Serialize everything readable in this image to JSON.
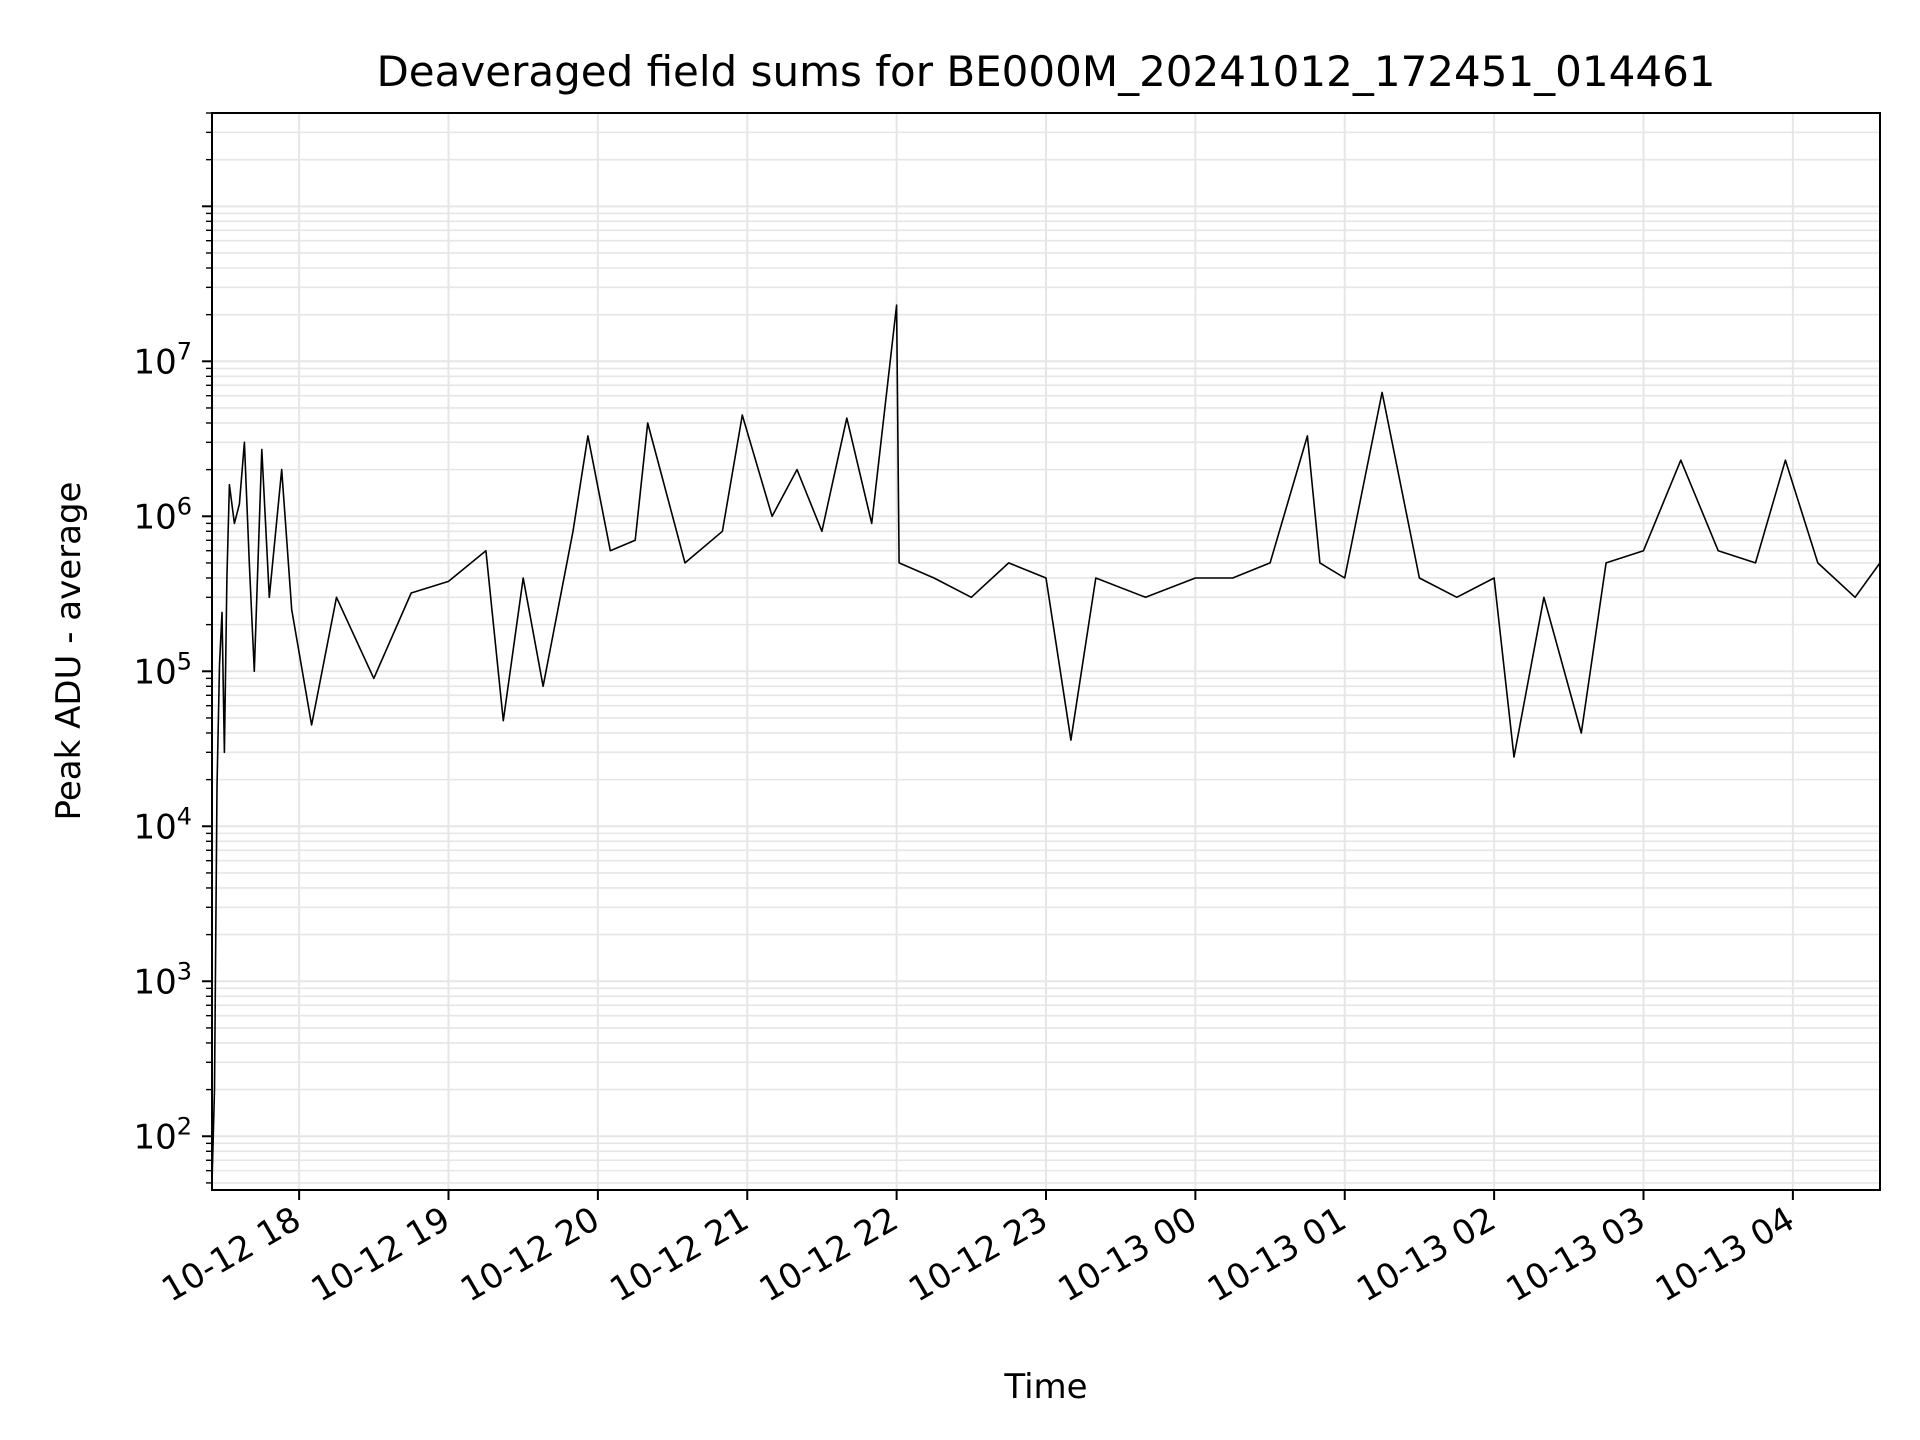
{
  "chart_data": {
    "type": "line",
    "title": "Deaveraged field sums for BE000M_20241012_172451_014461",
    "xlabel": "Time",
    "ylabel": "Peak ADU - average",
    "yscale": "log",
    "ylim": [
      45,
      400000000
    ],
    "xlim": [
      "2024-10-12 17:25",
      "2024-10-13 04:35"
    ],
    "grid": true,
    "line_color": "#000000",
    "grid_color": "#e6e6e6",
    "x_ticks": [
      {
        "label": "10-12 18",
        "value": "2024-10-12 18:00"
      },
      {
        "label": "10-12 19",
        "value": "2024-10-12 19:00"
      },
      {
        "label": "10-12 20",
        "value": "2024-10-12 20:00"
      },
      {
        "label": "10-12 21",
        "value": "2024-10-12 21:00"
      },
      {
        "label": "10-12 22",
        "value": "2024-10-12 22:00"
      },
      {
        "label": "10-12 23",
        "value": "2024-10-12 23:00"
      },
      {
        "label": "10-13 00",
        "value": "2024-10-13 00:00"
      },
      {
        "label": "10-13 01",
        "value": "2024-10-13 01:00"
      },
      {
        "label": "10-13 02",
        "value": "2024-10-13 02:00"
      },
      {
        "label": "10-13 03",
        "value": "2024-10-13 03:00"
      },
      {
        "label": "10-13 04",
        "value": "2024-10-13 04:00"
      }
    ],
    "y_ticks": [
      {
        "base": "10",
        "exp": "2",
        "value": 100
      },
      {
        "base": "10",
        "exp": "3",
        "value": 1000
      },
      {
        "base": "10",
        "exp": "4",
        "value": 10000
      },
      {
        "base": "10",
        "exp": "5",
        "value": 100000
      },
      {
        "base": "10",
        "exp": "6",
        "value": 1000000
      },
      {
        "base": "10",
        "exp": "7",
        "value": 10000000
      }
    ],
    "series": [
      {
        "points": [
          [
            "2024-10-12 17:25",
            50
          ],
          [
            "2024-10-12 17:26",
            200
          ],
          [
            "2024-10-12 17:27",
            18000
          ],
          [
            "2024-10-12 17:28",
            110000
          ],
          [
            "2024-10-12 17:29",
            240000
          ],
          [
            "2024-10-12 17:30",
            30000
          ],
          [
            "2024-10-12 17:31",
            400000
          ],
          [
            "2024-10-12 17:32",
            1600000
          ],
          [
            "2024-10-12 17:34",
            900000
          ],
          [
            "2024-10-12 17:36",
            1200000
          ],
          [
            "2024-10-12 17:38",
            3000000
          ],
          [
            "2024-10-12 17:40",
            500000
          ],
          [
            "2024-10-12 17:42",
            100000
          ],
          [
            "2024-10-12 17:45",
            2700000
          ],
          [
            "2024-10-12 17:48",
            300000
          ],
          [
            "2024-10-12 17:53",
            2000000
          ],
          [
            "2024-10-12 17:57",
            250000
          ],
          [
            "2024-10-12 18:05",
            45000
          ],
          [
            "2024-10-12 18:15",
            300000
          ],
          [
            "2024-10-12 18:30",
            90000
          ],
          [
            "2024-10-12 18:45",
            320000
          ],
          [
            "2024-10-12 19:00",
            380000
          ],
          [
            "2024-10-12 19:15",
            600000
          ],
          [
            "2024-10-12 19:22",
            48000
          ],
          [
            "2024-10-12 19:30",
            400000
          ],
          [
            "2024-10-12 19:38",
            80000
          ],
          [
            "2024-10-12 19:50",
            800000
          ],
          [
            "2024-10-12 19:56",
            3300000
          ],
          [
            "2024-10-12 20:05",
            600000
          ],
          [
            "2024-10-12 20:15",
            700000
          ],
          [
            "2024-10-12 20:20",
            4000000
          ],
          [
            "2024-10-12 20:35",
            500000
          ],
          [
            "2024-10-12 20:50",
            800000
          ],
          [
            "2024-10-12 20:58",
            4500000
          ],
          [
            "2024-10-12 21:10",
            1000000
          ],
          [
            "2024-10-12 21:20",
            2000000
          ],
          [
            "2024-10-12 21:30",
            800000
          ],
          [
            "2024-10-12 21:40",
            4300000
          ],
          [
            "2024-10-12 21:50",
            900000
          ],
          [
            "2024-10-12 22:00",
            23000000
          ],
          [
            "2024-10-12 22:01",
            500000
          ],
          [
            "2024-10-12 22:15",
            400000
          ],
          [
            "2024-10-12 22:30",
            300000
          ],
          [
            "2024-10-12 22:45",
            500000
          ],
          [
            "2024-10-12 23:00",
            400000
          ],
          [
            "2024-10-12 23:10",
            36000
          ],
          [
            "2024-10-12 23:20",
            400000
          ],
          [
            "2024-10-12 23:40",
            300000
          ],
          [
            "2024-10-13 00:00",
            400000
          ],
          [
            "2024-10-13 00:15",
            400000
          ],
          [
            "2024-10-13 00:30",
            500000
          ],
          [
            "2024-10-13 00:45",
            3300000
          ],
          [
            "2024-10-13 00:50",
            500000
          ],
          [
            "2024-10-13 01:00",
            400000
          ],
          [
            "2024-10-13 01:15",
            6300000
          ],
          [
            "2024-10-13 01:30",
            400000
          ],
          [
            "2024-10-13 01:45",
            300000
          ],
          [
            "2024-10-13 02:00",
            400000
          ],
          [
            "2024-10-13 02:08",
            28000
          ],
          [
            "2024-10-13 02:20",
            300000
          ],
          [
            "2024-10-13 02:35",
            40000
          ],
          [
            "2024-10-13 02:45",
            500000
          ],
          [
            "2024-10-13 03:00",
            600000
          ],
          [
            "2024-10-13 03:15",
            2300000
          ],
          [
            "2024-10-13 03:30",
            600000
          ],
          [
            "2024-10-13 03:45",
            500000
          ],
          [
            "2024-10-13 03:57",
            2300000
          ],
          [
            "2024-10-13 04:10",
            500000
          ],
          [
            "2024-10-13 04:25",
            300000
          ],
          [
            "2024-10-13 04:35",
            500000
          ]
        ]
      }
    ]
  }
}
